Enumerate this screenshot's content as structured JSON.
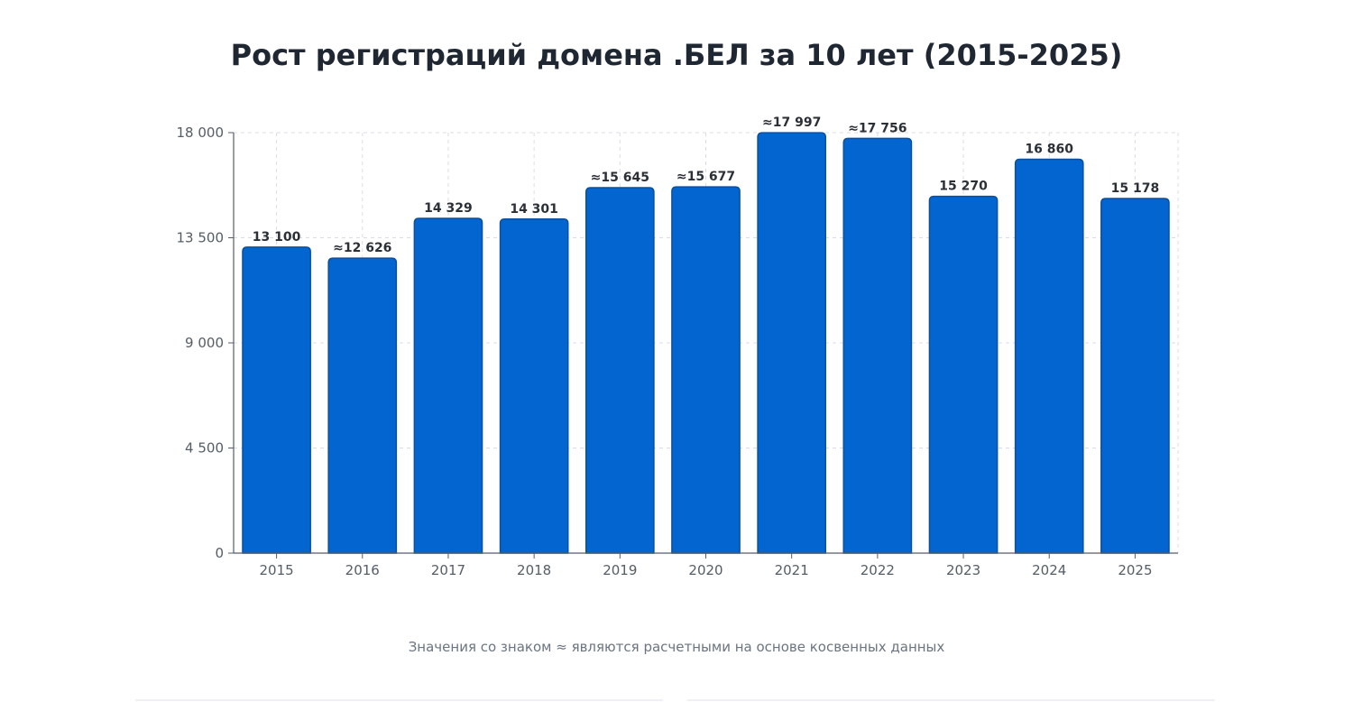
{
  "chart_data": {
    "type": "bar",
    "title": "Рост регистраций домена .БЕЛ за 10 лет (2015-2025)",
    "xlabel": "",
    "ylabel": "",
    "categories": [
      "2015",
      "2016",
      "2017",
      "2018",
      "2019",
      "2020",
      "2021",
      "2022",
      "2023",
      "2024",
      "2025"
    ],
    "values": [
      13100,
      12626,
      14329,
      14301,
      15645,
      15677,
      17997,
      17756,
      15270,
      16860,
      15178
    ],
    "value_labels": [
      "13 100",
      "≈12 626",
      "14 329",
      "14 301",
      "≈15 645",
      "≈15 677",
      "≈17 997",
      "≈17 756",
      "15 270",
      "16 860",
      "15 178"
    ],
    "ylim": [
      0,
      18000
    ],
    "yticks": [
      0,
      4500,
      9000,
      13500,
      18000
    ],
    "ytick_labels": [
      "0",
      "4 500",
      "9 000",
      "13 500",
      "18 000"
    ],
    "grid": true,
    "bar_color": "#0366d0",
    "bar_border_color": "#0b4f9e",
    "grid_color": "#d9dde3",
    "axis_color": "#555d66"
  },
  "footnote": "Значения со знаком ≈ являются расчетными на основе косвенных данных"
}
